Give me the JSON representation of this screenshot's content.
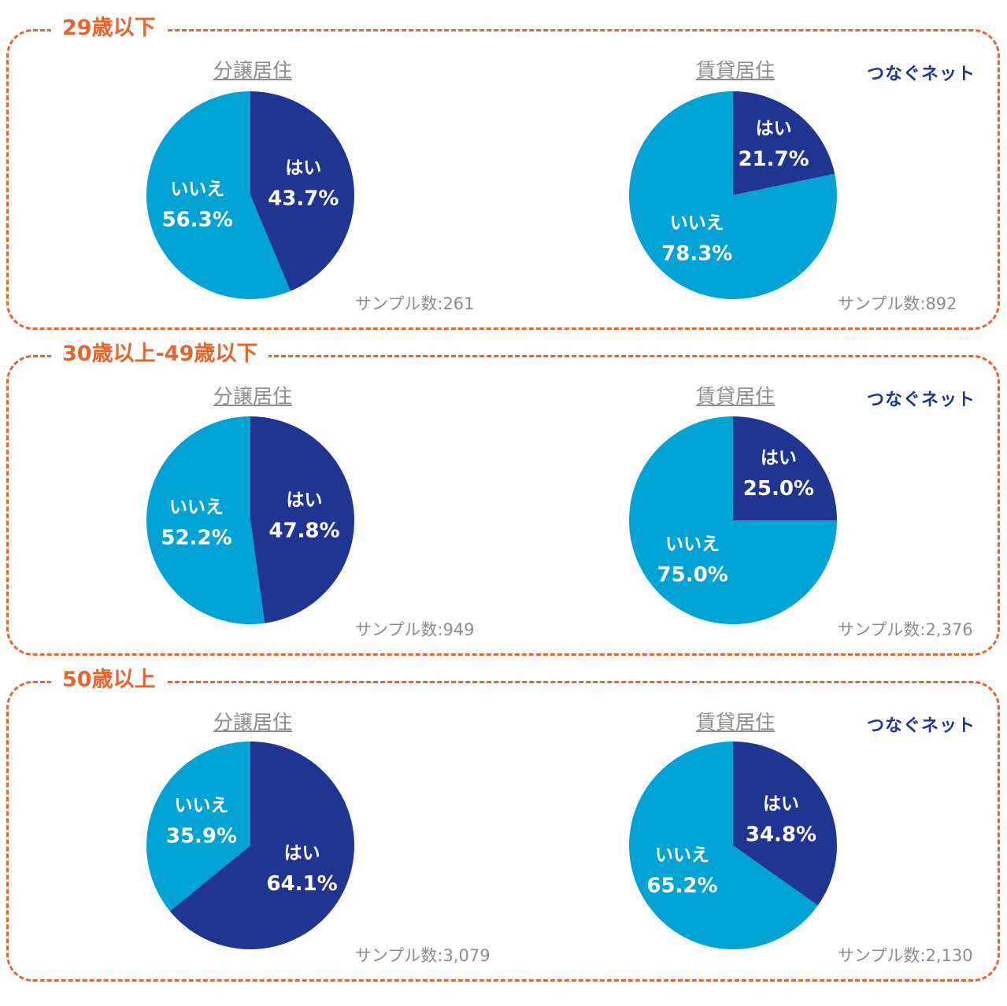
{
  "colors": {
    "border": "#e8642c",
    "yes": "#1f3591",
    "no": "#00a3d4",
    "title_gray": "#8c8c8c",
    "brand": "#1f3591"
  },
  "brand": "つなぐネット",
  "groups": [
    {
      "title": "29歳以下",
      "panels": [
        {
          "title": "分譲居住",
          "sample": "サンプル数:261"
        },
        {
          "title": "賃貸居住",
          "sample": "サンプル数:892"
        }
      ]
    },
    {
      "title": "30歳以上-49歳以下",
      "panels": [
        {
          "title": "分譲居住",
          "sample": "サンプル数:949"
        },
        {
          "title": "賃貸居住",
          "sample": "サンプル数:2,376"
        }
      ]
    },
    {
      "title": "50歳以上",
      "panels": [
        {
          "title": "分譲居住",
          "sample": "サンプル数:3,079"
        },
        {
          "title": "賃貸居住",
          "sample": "サンプル数:2,130"
        }
      ]
    }
  ],
  "chart_data": [
    {
      "type": "pie",
      "title": "分譲居住",
      "slices": [
        {
          "label": "はい",
          "value": 43.7,
          "display": "43.7%"
        },
        {
          "label": "いいえ",
          "value": 56.3,
          "display": "56.3%"
        }
      ]
    },
    {
      "type": "pie",
      "title": "賃貸居住",
      "slices": [
        {
          "label": "はい",
          "value": 21.7,
          "display": "21.7%"
        },
        {
          "label": "いいえ",
          "value": 78.3,
          "display": "78.3%"
        }
      ]
    },
    {
      "type": "pie",
      "title": "分譲居住",
      "slices": [
        {
          "label": "はい",
          "value": 47.8,
          "display": "47.8%"
        },
        {
          "label": "いいえ",
          "value": 52.2,
          "display": "52.2%"
        }
      ]
    },
    {
      "type": "pie",
      "title": "賃貸居住",
      "slices": [
        {
          "label": "はい",
          "value": 25.0,
          "display": "25.0%"
        },
        {
          "label": "いいえ",
          "value": 75.0,
          "display": "75.0%"
        }
      ]
    },
    {
      "type": "pie",
      "title": "分譲居住",
      "slices": [
        {
          "label": "はい",
          "value": 64.1,
          "display": "64.1%"
        },
        {
          "label": "いいえ",
          "value": 35.9,
          "display": "35.9%"
        }
      ]
    },
    {
      "type": "pie",
      "title": "賃貸居住",
      "slices": [
        {
          "label": "はい",
          "value": 34.8,
          "display": "34.8%"
        },
        {
          "label": "いいえ",
          "value": 65.2,
          "display": "65.2%"
        }
      ]
    }
  ]
}
